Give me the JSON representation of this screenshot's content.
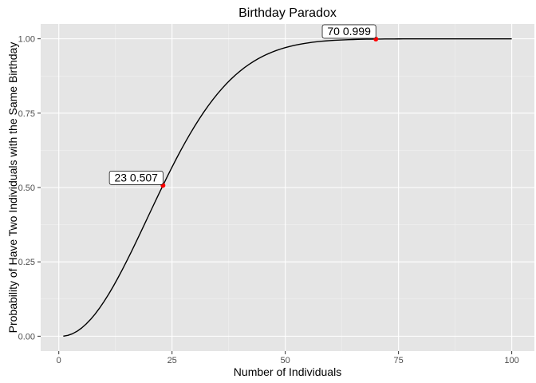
{
  "chart_data": {
    "type": "line",
    "title": "Birthday Paradox",
    "xlabel": "Number of Individuals",
    "ylabel": "Probability of Have Two Individuals with the Same Birthday",
    "xlim": [
      -4.0,
      105.0
    ],
    "ylim": [
      -0.05,
      1.05
    ],
    "x_ticks": [
      0,
      25,
      50,
      75,
      100
    ],
    "x_tick_labels": [
      "0",
      "25",
      "50",
      "75",
      "100"
    ],
    "y_ticks": [
      0.0,
      0.25,
      0.5,
      0.75,
      1.0
    ],
    "y_tick_labels": [
      "0.00",
      "0.25",
      "0.50",
      "0.75",
      "1.00"
    ],
    "grid": true,
    "series": [
      {
        "color": "#000000",
        "x_range": [
          1,
          100
        ],
        "step": 1,
        "formula": "1 - prod_{k=0}^{n-1} (365-k)/365"
      }
    ],
    "highlights": [
      {
        "x": 23,
        "y": 0.507,
        "label": "23 0.507",
        "color": "#ff0000"
      },
      {
        "x": 70,
        "y": 0.999,
        "label": "70 0.999",
        "color": "#ff0000"
      }
    ],
    "colors": {
      "panel": "#e5e5e5",
      "grid_major": "#ffffff",
      "line": "#000000",
      "point": "#ff0000"
    }
  }
}
